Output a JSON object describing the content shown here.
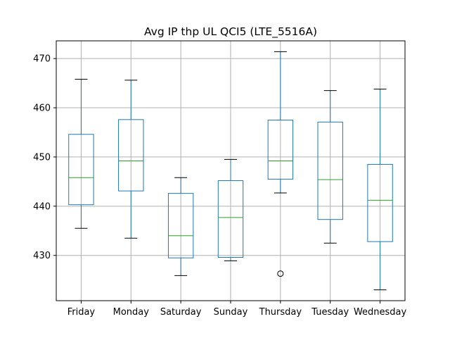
{
  "chart_data": {
    "type": "box",
    "title": "Avg IP thp UL QCI5 (LTE_5516A)",
    "xlabel": "",
    "ylabel": "",
    "categories": [
      "Friday",
      "Monday",
      "Saturday",
      "Sunday",
      "Thursday",
      "Tuesday",
      "Wednesday"
    ],
    "boxes": [
      {
        "category": "Friday",
        "whisker_low": 435.5,
        "q1": 440.3,
        "median": 445.8,
        "q3": 454.6,
        "whisker_high": 465.8,
        "outliers": []
      },
      {
        "category": "Monday",
        "whisker_low": 433.5,
        "q1": 443.1,
        "median": 449.2,
        "q3": 457.6,
        "whisker_high": 465.6,
        "outliers": []
      },
      {
        "category": "Saturday",
        "whisker_low": 425.9,
        "q1": 429.5,
        "median": 434.0,
        "q3": 442.6,
        "whisker_high": 445.8,
        "outliers": []
      },
      {
        "category": "Sunday",
        "whisker_low": 428.9,
        "q1": 429.6,
        "median": 437.7,
        "q3": 445.2,
        "whisker_high": 449.5,
        "outliers": []
      },
      {
        "category": "Thursday",
        "whisker_low": 442.7,
        "q1": 445.5,
        "median": 449.2,
        "q3": 457.5,
        "whisker_high": 471.4,
        "outliers": [
          426.3
        ]
      },
      {
        "category": "Tuesday",
        "whisker_low": 432.5,
        "q1": 437.3,
        "median": 445.4,
        "q3": 457.1,
        "whisker_high": 463.5,
        "outliers": []
      },
      {
        "category": "Wednesday",
        "whisker_low": 423.0,
        "q1": 432.8,
        "median": 441.2,
        "q3": 448.5,
        "whisker_high": 463.8,
        "outliers": []
      }
    ],
    "yticks": [
      430,
      440,
      450,
      460,
      470
    ],
    "ylim": [
      420.8,
      473.6
    ],
    "grid": true,
    "legend": "none",
    "colors": {
      "box": "#1f77b4",
      "median": "#2ca02c",
      "whisker_cap": "#000000",
      "grid": "#b0b0b0",
      "outlier": "#000000"
    }
  }
}
